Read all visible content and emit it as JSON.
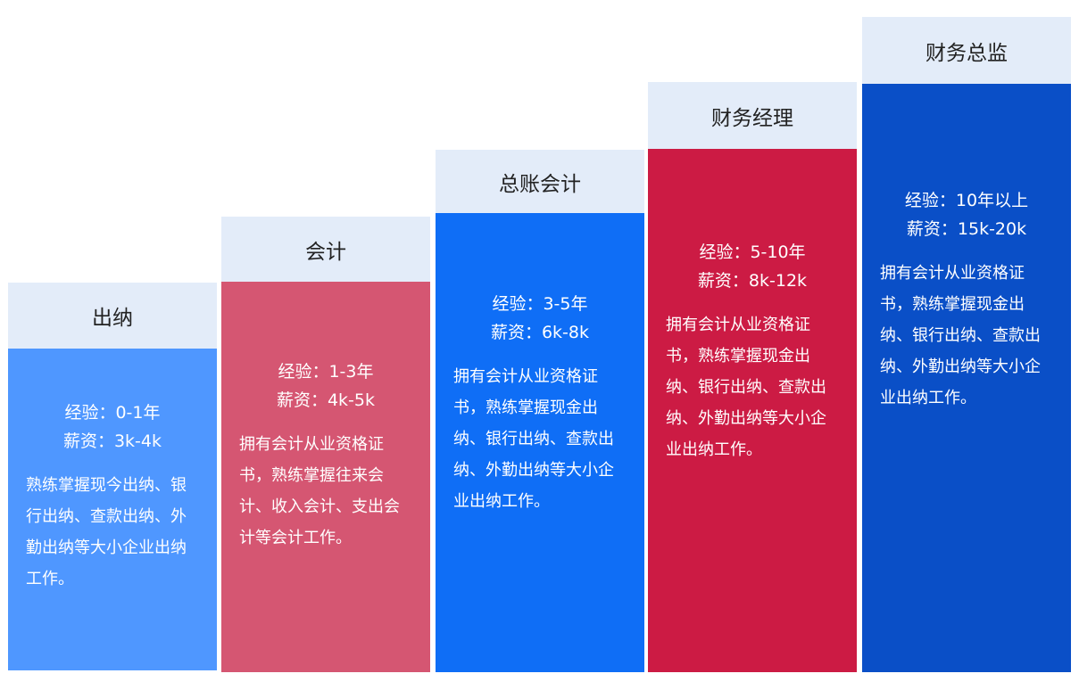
{
  "colors": {
    "header_bg": "#e3ecf9",
    "step1": "#4f97ff",
    "step2": "#d55672",
    "step3": "#0f6ef6",
    "step4": "#cc1b44",
    "step5": "#0a4fc7"
  },
  "steps": [
    {
      "title": "出纳",
      "experience": "经验：0-1年",
      "salary": "薪资：3k-4k",
      "description": "熟练掌握现今出纳、银行出纳、查款出纳、外勤出纳等大小企业出纳工作。"
    },
    {
      "title": "会计",
      "experience": "经验：1-3年",
      "salary": "薪资：4k-5k",
      "description": "拥有会计从业资格证书，熟练掌握往来会计、收入会计、支出会计等会计工作。"
    },
    {
      "title": "总账会计",
      "experience": "经验：3-5年",
      "salary": "薪资：6k-8k",
      "description": "拥有会计从业资格证书，熟练掌握现金出纳、银行出纳、查款出纳、外勤出纳等大小企业出纳工作。"
    },
    {
      "title": "财务经理",
      "experience": "经验：5-10年",
      "salary": "薪资：8k-12k",
      "description": "拥有会计从业资格证书，熟练掌握现金出纳、银行出纳、查款出纳、外勤出纳等大小企业出纳工作。"
    },
    {
      "title": "财务总监",
      "experience": "经验：10年以上",
      "salary": "薪资：15k-20k",
      "description": "拥有会计从业资格证书，熟练掌握现金出纳、银行出纳、查款出纳、外勤出纳等大小企业出纳工作。"
    }
  ]
}
